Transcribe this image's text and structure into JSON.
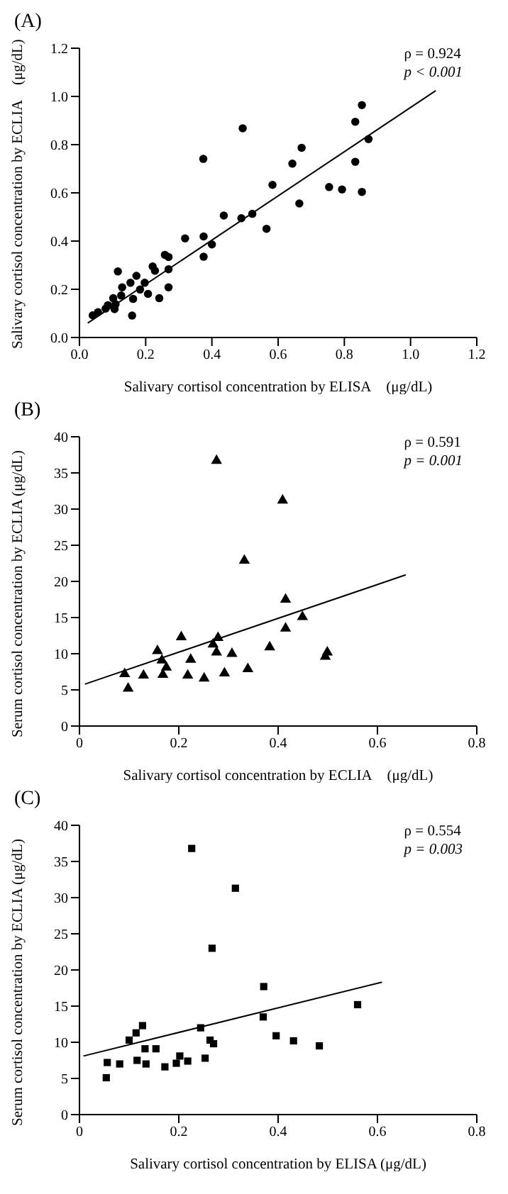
{
  "chart_data": [
    {
      "type": "scatter",
      "title": "(A)",
      "xlabel": "Salivary cortisol concentration by ELISA　(μg/dL)",
      "ylabel": "Salivary cortisol concentration by ECLIA　(μg/dL)",
      "annotations": [
        "ρ = 0.924",
        "p < 0.001"
      ],
      "xlim": [
        0,
        1.2
      ],
      "ylim": [
        0,
        1.2
      ],
      "xticks": [
        {
          "value": 0,
          "label": "0.0"
        },
        0.2,
        0.4,
        0.6,
        0.8,
        {
          "value": 1,
          "label": "1.0"
        },
        1.2
      ],
      "yticks": [
        {
          "value": 0,
          "label": "0.0"
        },
        0.2,
        0.4,
        0.6,
        0.8,
        {
          "value": 1,
          "label": "1.0"
        },
        1.2
      ],
      "series": [
        {
          "type": "scatter",
          "marker": "circle",
          "color": "#000000",
          "x": [
            0.853,
            0.833,
            0.873,
            0.833,
            0.853,
            0.754,
            0.793,
            0.671,
            0.643,
            0.583,
            0.664,
            0.565,
            0.522,
            0.489,
            0.493,
            0.436,
            0.374,
            0.375,
            0.4,
            0.375,
            0.319,
            0.258,
            0.269,
            0.269,
            0.269,
            0.241,
            0.221,
            0.228,
            0.197,
            0.207,
            0.183,
            0.172,
            0.154,
            0.162,
            0.129,
            0.116,
            0.126,
            0.102,
            0.109,
            0.106,
            0.086,
            0.079,
            0.056,
            0.04,
            0.159
          ],
          "values": [
            0.964,
            0.895,
            0.823,
            0.729,
            0.604,
            0.624,
            0.614,
            0.787,
            0.721,
            0.633,
            0.556,
            0.451,
            0.513,
            0.495,
            0.868,
            0.506,
            0.741,
            0.419,
            0.386,
            0.335,
            0.411,
            0.343,
            0.334,
            0.283,
            0.208,
            0.163,
            0.295,
            0.277,
            0.227,
            0.181,
            0.199,
            0.256,
            0.227,
            0.16,
            0.208,
            0.274,
            0.174,
            0.163,
            0.138,
            0.118,
            0.134,
            0.12,
            0.105,
            0.092,
            0.091
          ]
        },
        {
          "type": "line",
          "marker": "none",
          "color": "#000000",
          "x": [
            0.025,
            1.076
          ],
          "values": [
            0.06,
            1.024
          ]
        }
      ]
    },
    {
      "type": "scatter",
      "title": "(B)",
      "xlabel": "Salivary cortisol concentration by ECLIA　(μg/dL)",
      "ylabel": "Serum cortisol concentration by ECLIA (μg/dL)",
      "annotations": [
        "ρ = 0.591",
        "p = 0.001"
      ],
      "xlim": [
        0,
        0.8
      ],
      "ylim": [
        0,
        40
      ],
      "xticks": [
        0,
        0.2,
        0.4,
        0.6,
        0.8
      ],
      "yticks": [
        0,
        5,
        10,
        15,
        20,
        25,
        30,
        35,
        40
      ],
      "series": [
        {
          "type": "scatter",
          "marker": "triangle",
          "color": "#000000",
          "x": [
            0.276,
            0.409,
            0.332,
            0.415,
            0.449,
            0.415,
            0.383,
            0.499,
            0.495,
            0.205,
            0.279,
            0.269,
            0.276,
            0.307,
            0.224,
            0.157,
            0.166,
            0.175,
            0.168,
            0.218,
            0.251,
            0.292,
            0.339,
            0.129,
            0.091,
            0.098
          ],
          "values": [
            36.7,
            31.2,
            22.9,
            17.5,
            15.1,
            13.5,
            10.9,
            10.2,
            9.6,
            12.3,
            12.2,
            11.3,
            10.2,
            10,
            9.2,
            10.4,
            9.1,
            8.1,
            7.1,
            7,
            6.6,
            7.3,
            7.9,
            7,
            7.2,
            5.2
          ]
        },
        {
          "type": "line",
          "marker": "none",
          "color": "#000000",
          "x": [
            0.011,
            0.657
          ],
          "values": [
            5.8,
            20.9
          ]
        }
      ]
    },
    {
      "type": "scatter",
      "title": "(C)",
      "xlabel": "Salivary cortisol concentration by ELISA (μg/dL)",
      "ylabel": "Serum cortisol concentration by ECLIA (μg/dL)",
      "annotations": [
        "ρ = 0.554",
        "p = 0.003"
      ],
      "xlim": [
        0,
        0.8
      ],
      "ylim": [
        0,
        40
      ],
      "xticks": [
        0,
        0.2,
        0.4,
        0.6,
        0.8
      ],
      "yticks": [
        0,
        5,
        10,
        15,
        20,
        25,
        30,
        35,
        40
      ],
      "series": [
        {
          "type": "scatter",
          "marker": "square",
          "color": "#000000",
          "x": [
            0.226,
            0.314,
            0.267,
            0.371,
            0.56,
            0.37,
            0.396,
            0.431,
            0.483,
            0.244,
            0.263,
            0.27,
            0.253,
            0.127,
            0.114,
            0.1,
            0.132,
            0.154,
            0.116,
            0.134,
            0.172,
            0.195,
            0.202,
            0.218,
            0.056,
            0.081,
            0.054
          ],
          "values": [
            36.8,
            31.3,
            23,
            17.7,
            15.2,
            13.5,
            10.9,
            10.2,
            9.5,
            12,
            10.3,
            9.8,
            7.8,
            12.3,
            11.3,
            10.3,
            9.1,
            9.1,
            7.5,
            7,
            6.6,
            7.1,
            8.1,
            7.4,
            7.2,
            7,
            5.1
          ]
        },
        {
          "type": "line",
          "marker": "none",
          "color": "#000000",
          "x": [
            0.008,
            0.609
          ],
          "values": [
            8.1,
            18.3
          ]
        }
      ]
    }
  ]
}
